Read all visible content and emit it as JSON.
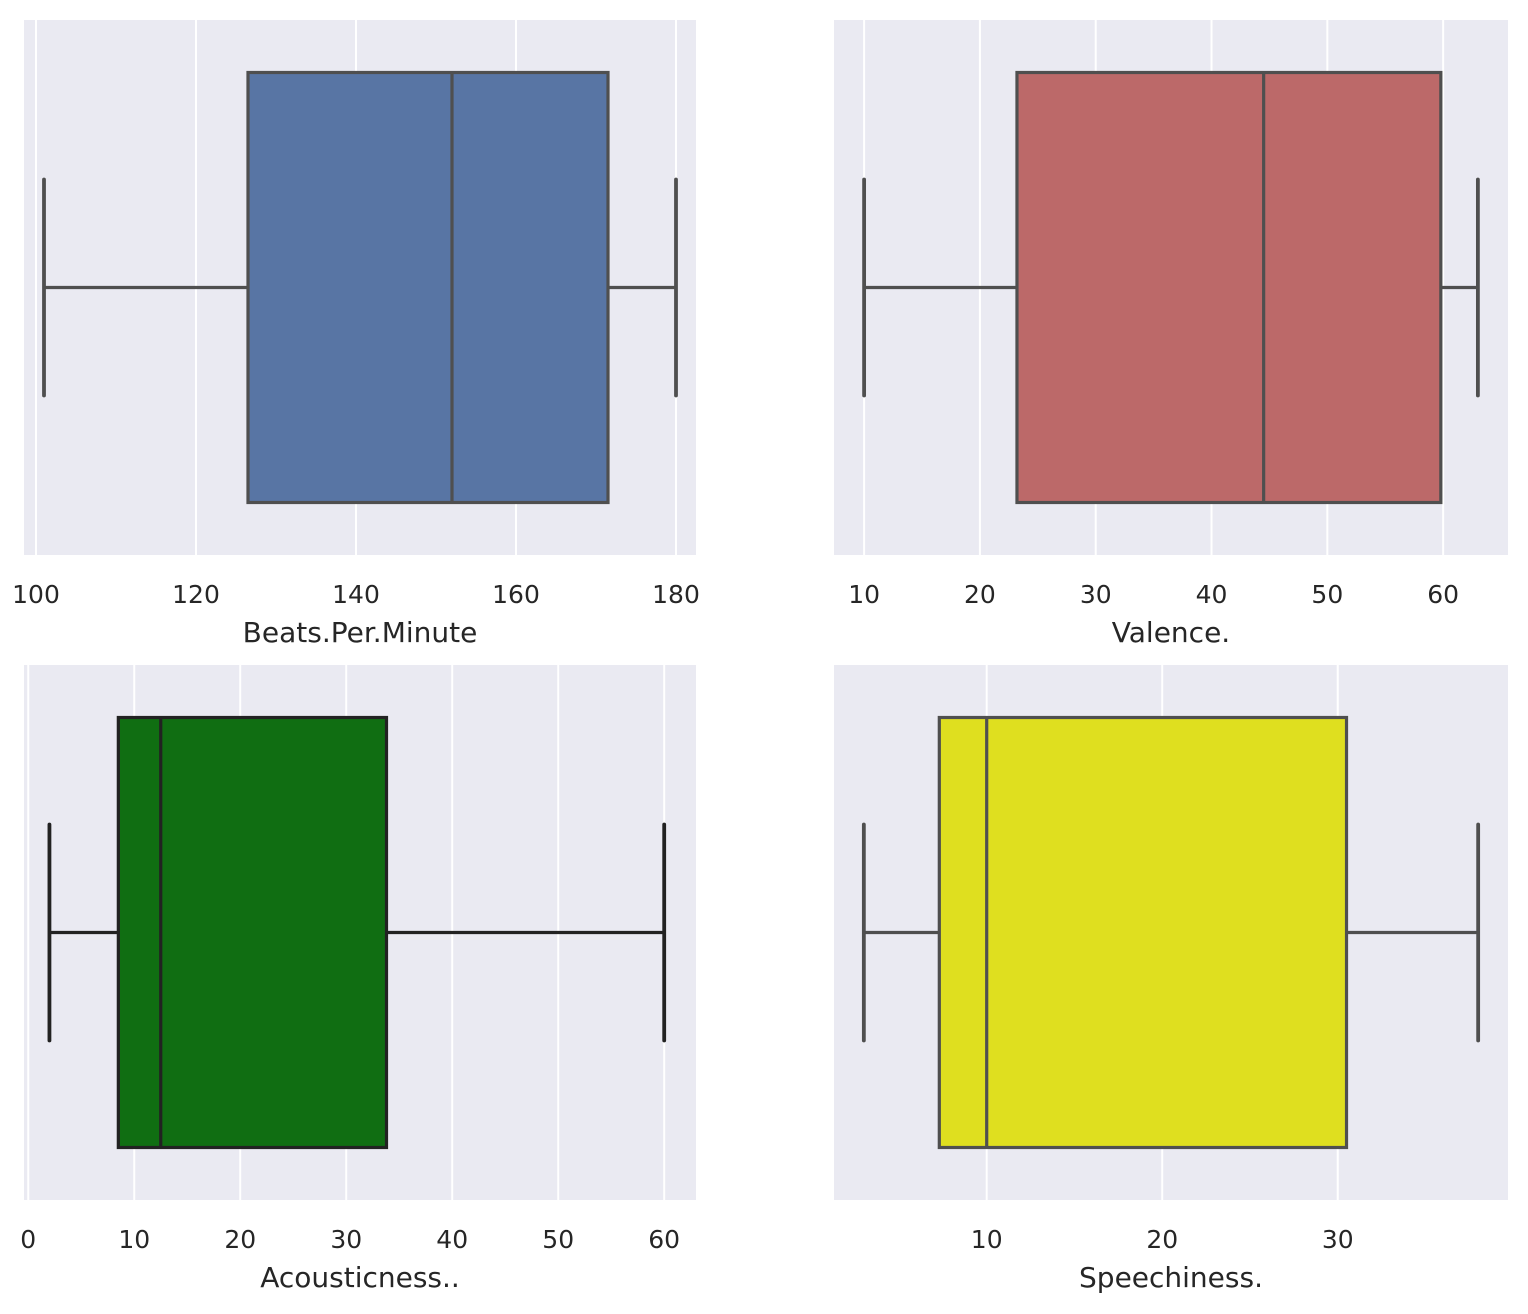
{
  "chart_data": [
    {
      "type": "box",
      "xlabel": "Beats.Per.Minute",
      "xlim": [
        98.5,
        182.5
      ],
      "xticks": [
        100,
        120,
        140,
        160,
        180
      ],
      "box_color": "#5875a4",
      "line_color": "#4f4f4f",
      "stats": {
        "min": 101,
        "q1": 126.5,
        "median": 152,
        "q3": 171.5,
        "max": 180
      }
    },
    {
      "type": "box",
      "xlabel": "Valence.",
      "xlim": [
        7.4,
        65.6
      ],
      "xticks": [
        10,
        20,
        30,
        40,
        50,
        60
      ],
      "box_color": "#bc6969",
      "line_color": "#4f4f4f",
      "stats": {
        "min": 10,
        "q1": 23.2,
        "median": 44.5,
        "q3": 59.8,
        "max": 63
      }
    },
    {
      "type": "box",
      "xlabel": "Acousticness..",
      "xlim": [
        -0.4,
        63
      ],
      "xticks": [
        0,
        10,
        20,
        30,
        40,
        50,
        60
      ],
      "box_color": "#106e12",
      "line_color": "#222222",
      "stats": {
        "min": 2,
        "q1": 8.5,
        "median": 12.5,
        "q3": 33.8,
        "max": 60
      }
    },
    {
      "type": "box",
      "xlabel": "Speechiness.",
      "xlim": [
        1.3,
        39.7
      ],
      "xticks": [
        10,
        20,
        30
      ],
      "box_color": "#dfdf1f",
      "line_color": "#4f4f4f",
      "stats": {
        "min": 3,
        "q1": 7.3,
        "median": 10,
        "q3": 30.5,
        "max": 38
      }
    }
  ],
  "style": {
    "panel_bg": "#eaeaf2",
    "grid_color": "#ffffff",
    "text_color": "#262626"
  }
}
